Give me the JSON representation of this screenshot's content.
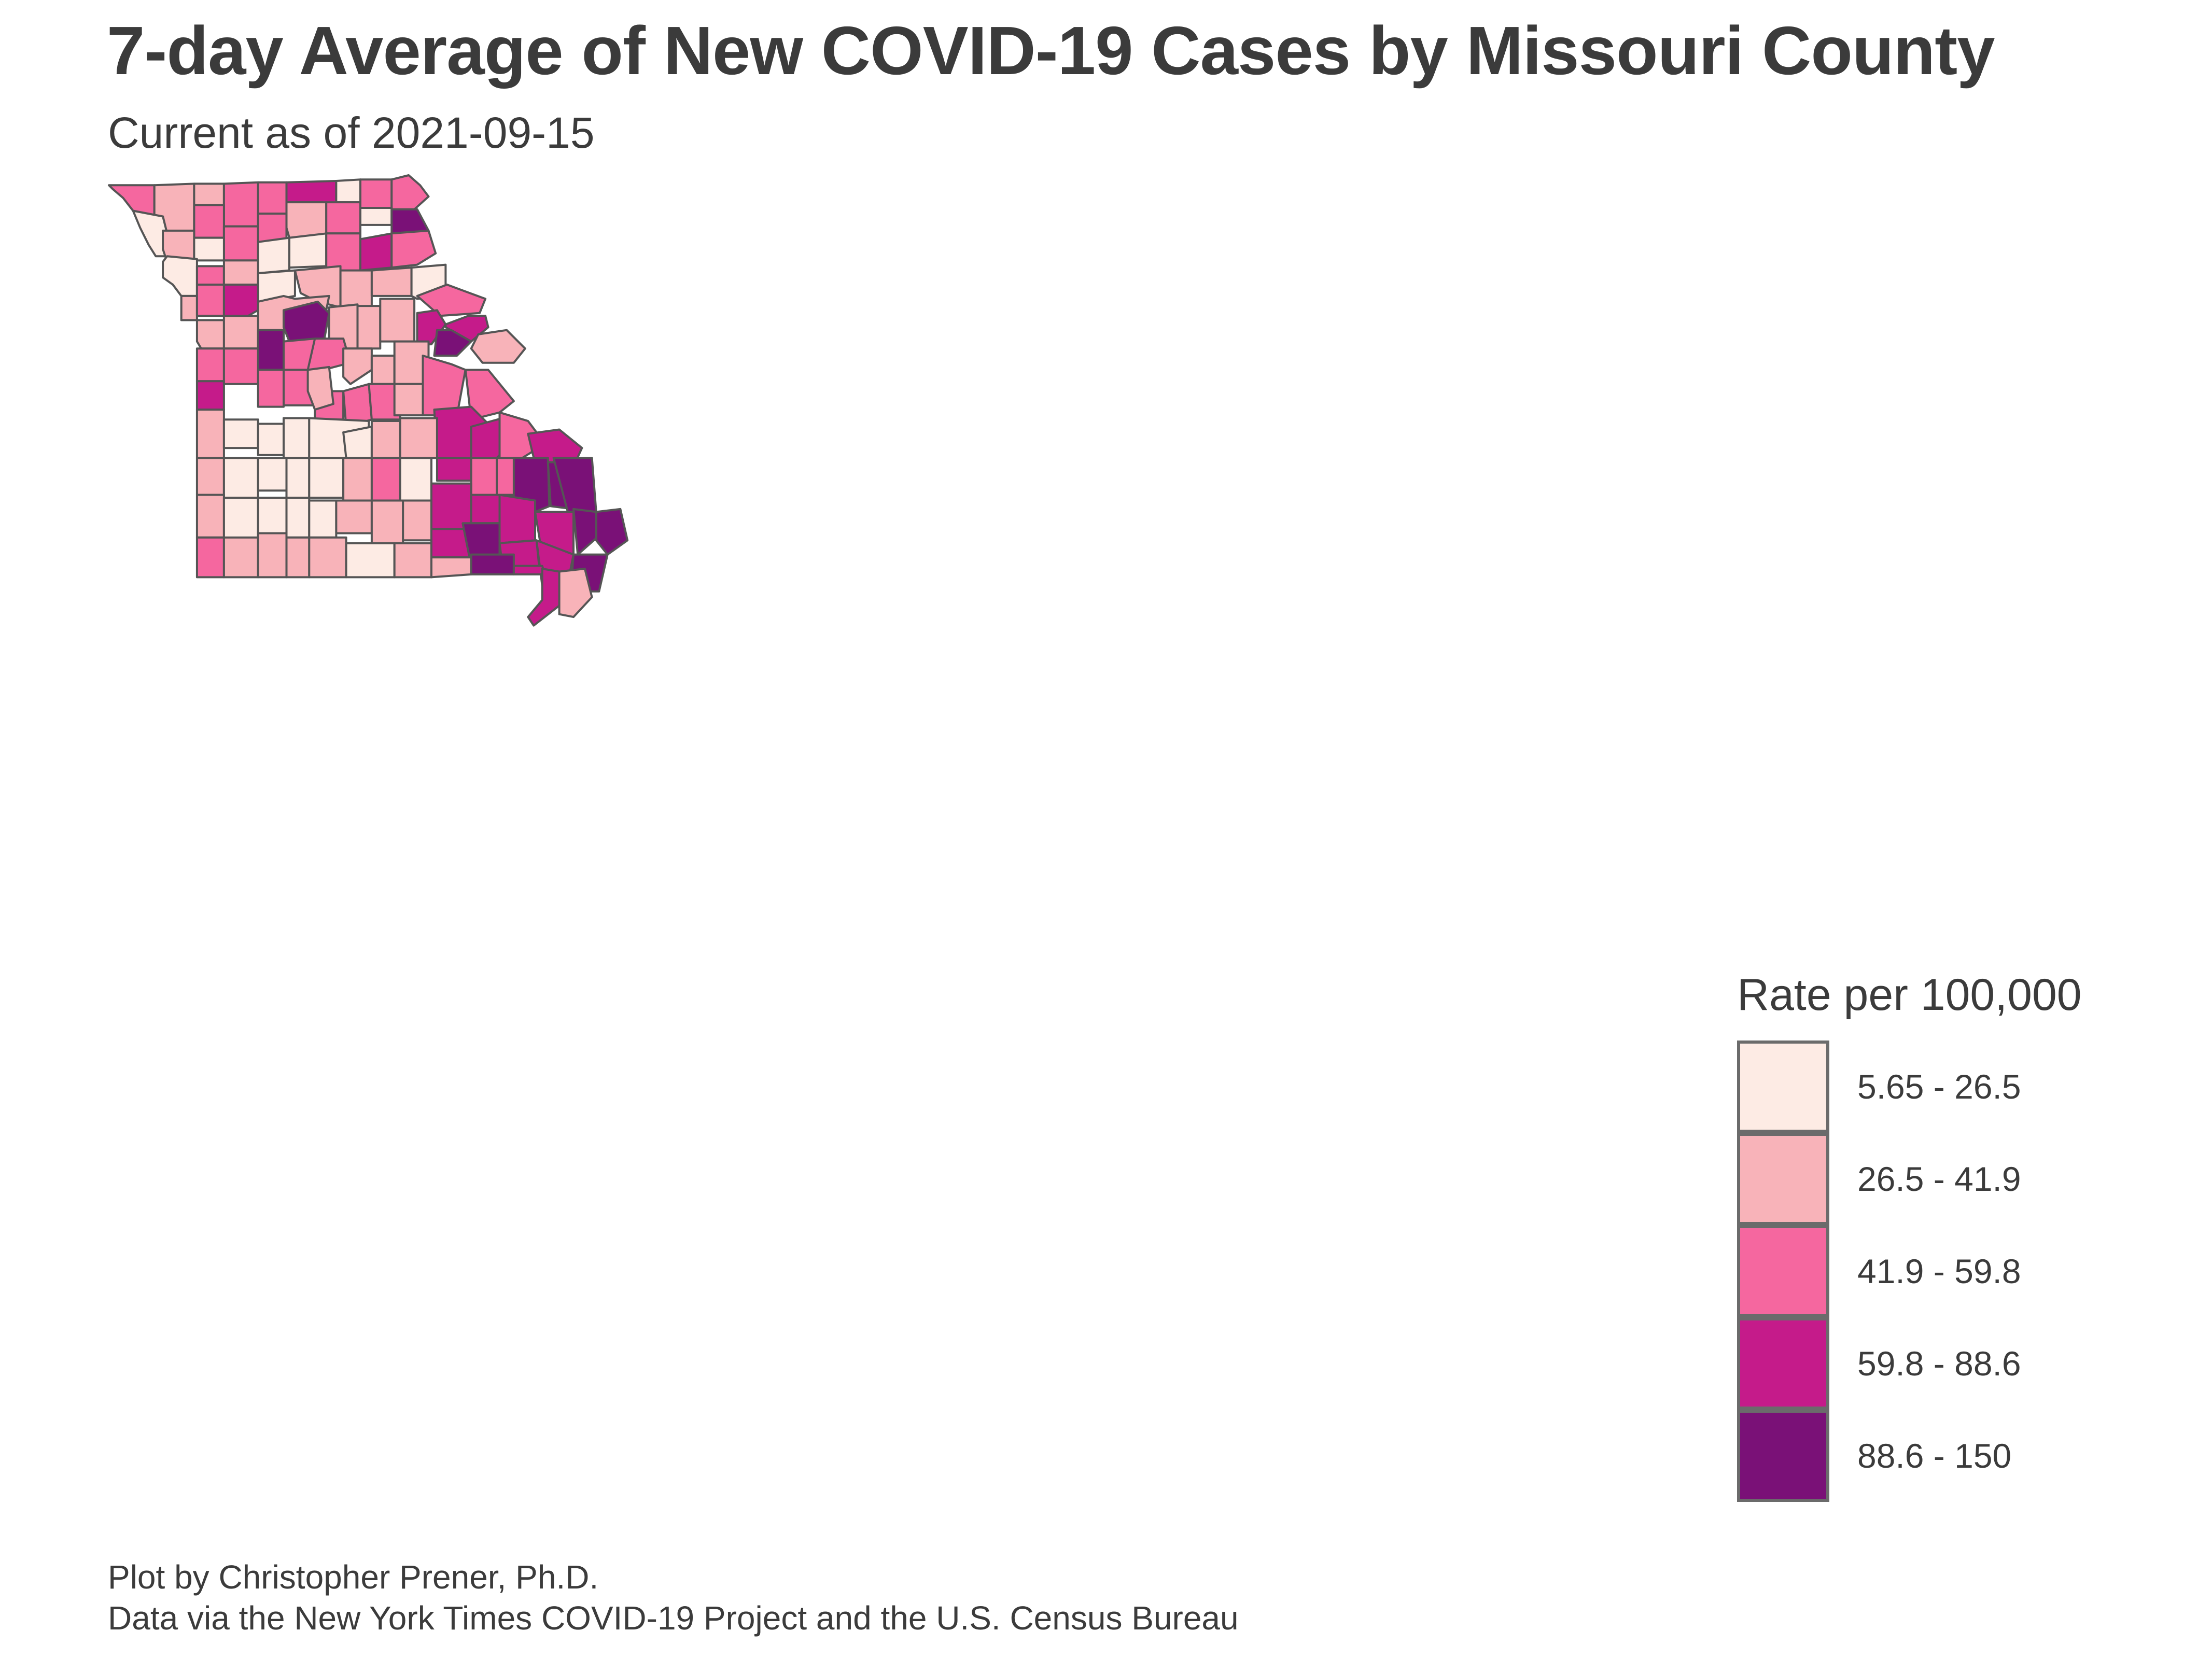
{
  "title": "7-day Average of New COVID-19 Cases by Missouri County",
  "subtitle": "Current as of 2021-09-15",
  "legend": {
    "title": "Rate per 100,000",
    "items": [
      {
        "label": "5.65 - 26.5",
        "color": "#fdebe4"
      },
      {
        "label": "26.5 - 41.9",
        "color": "#f8b3b9"
      },
      {
        "label": "41.9 - 59.8",
        "color": "#f5679f"
      },
      {
        "label": "59.8 - 88.6",
        "color": "#c51b8a"
      },
      {
        "label": "88.6 - 150",
        "color": "#7a1177"
      }
    ]
  },
  "caption": {
    "line1": "Plot by Christopher Prener, Ph.D.",
    "line2": "Data via the New York Times COVID-19 Project and the U.S. Census Bureau"
  },
  "map": {
    "region": "Missouri",
    "border_color": "#555555"
  }
}
